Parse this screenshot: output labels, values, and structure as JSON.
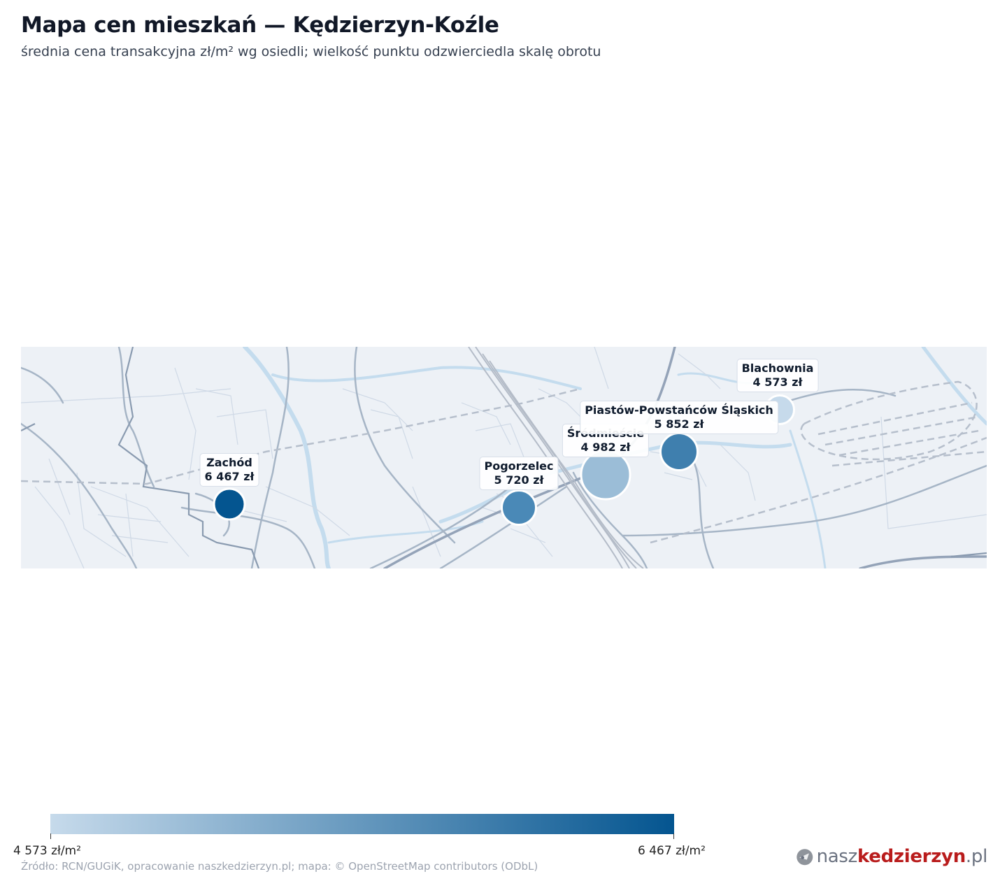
{
  "header": {
    "title": "Mapa cen mieszkań — Kędzierzyn-Koźle",
    "subtitle": "średnia cena transakcyjna zł/m² wg osiedli; wielkość punktu odzwierciedla skalę obrotu"
  },
  "map": {
    "tile_source_icon": "street-basemap",
    "districts": [
      {
        "name": "Zachód",
        "price": "6 467 zł",
        "value": 6467,
        "turnover_scale": 0.35,
        "color": "#045590"
      },
      {
        "name": "Pogorzelec",
        "price": "5 720 zł",
        "value": 5720,
        "turnover_scale": 0.5,
        "color": "#4a89b7"
      },
      {
        "name": "Śródmieście",
        "price": "4 982 zł",
        "value": 4982,
        "turnover_scale": 1.0,
        "color": "#9bbdd7"
      },
      {
        "name": "Piastów-Powstańców Śląskich",
        "price": "5 852 zł",
        "value": 5852,
        "turnover_scale": 0.55,
        "color": "#3f7fae"
      },
      {
        "name": "Blachownia",
        "price": "4 573 zł",
        "value": 4573,
        "turnover_scale": 0.3,
        "color": "#c6daeb"
      }
    ]
  },
  "legend": {
    "min_label": "4 573 zł/m²",
    "max_label": "6 467 zł/m²",
    "min_value": 4573,
    "max_value": 6467,
    "color_low": "#c6daeb",
    "color_high": "#045590"
  },
  "footer": {
    "source": "Źródło: RCN/GUGiK, opracowanie naszkedzierzyn.pl; mapa: © OpenStreetMap contributors (ODbL)",
    "brand_prefix": "nasz",
    "brand_main": "kedzierzyn",
    "brand_suffix": ".pl",
    "brand_icon": "rocket-globe-icon"
  }
}
